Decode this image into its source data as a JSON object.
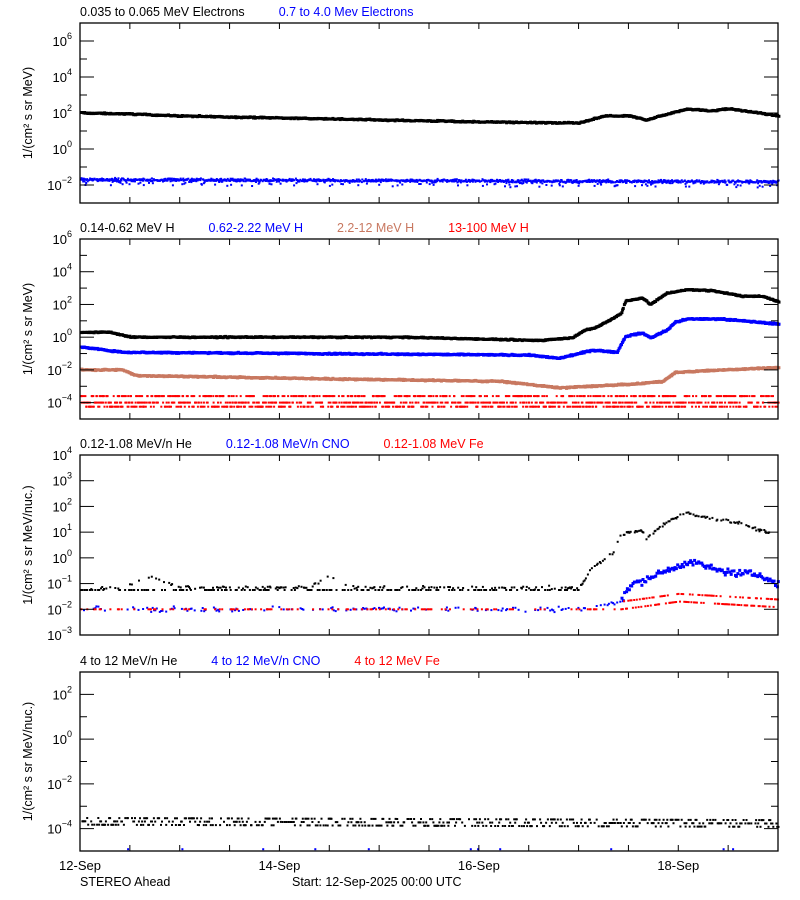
{
  "chart_data": {
    "type": "scatter",
    "x_range": [
      "2025-09-12T00:00",
      "2025-09-19T00:00"
    ],
    "x_tick_labels": [
      "12-Sep",
      "14-Sep",
      "16-Sep",
      "18-Sep"
    ],
    "x_ticks": [
      "2025-09-12T00:00",
      "2025-09-14T00:00",
      "2025-09-16T00:00",
      "2025-09-18T00:00"
    ],
    "x_minor_interval_hours": 12,
    "footer_left": "STEREO Ahead",
    "footer_center": "Start: 12-Sep-2025 00:00 UTC",
    "y_scale": "log",
    "grid": false,
    "panels": [
      {
        "ylabel": "1/(cm² s sr MeV)",
        "ylim": [
          0.001,
          10000000
        ],
        "yticks": [
          1000000,
          10000,
          100,
          1,
          0.01
        ],
        "series": [
          {
            "name": "0.035 to 0.065 MeV Electrons",
            "color": "#000000",
            "points": [
              [
                "2025-09-12T00:00",
                100
              ],
              [
                "2025-09-12T12:00",
                88
              ],
              [
                "2025-09-13T00:00",
                68
              ],
              [
                "2025-09-14T00:00",
                53
              ],
              [
                "2025-09-15T00:00",
                41
              ],
              [
                "2025-09-16T00:00",
                32
              ],
              [
                "2025-09-16T19:00",
                28
              ],
              [
                "2025-09-17T00:00",
                28
              ],
              [
                "2025-09-17T06:00",
                68
              ],
              [
                "2025-09-17T12:00",
                68
              ],
              [
                "2025-09-17T16:00",
                41
              ],
              [
                "2025-09-17T22:00",
                100
              ],
              [
                "2025-09-18T02:00",
                170
              ],
              [
                "2025-09-18T07:00",
                130
              ],
              [
                "2025-09-18T12:00",
                170
              ],
              [
                "2025-09-19T00:00",
                68
              ]
            ]
          },
          {
            "name": "0.7 to 4.0 Mev Electrons",
            "color": "#0000ff",
            "points": [
              [
                "2025-09-12T00:00",
                0.02
              ],
              [
                "2025-09-19T00:00",
                0.015
              ]
            ]
          }
        ]
      },
      {
        "ylabel": "1/(cm² s sr MeV)",
        "ylim": [
          1e-05,
          1000000
        ],
        "yticks": [
          1000000,
          10000,
          100,
          1,
          0.01,
          0.0001
        ],
        "series": [
          {
            "name": "0.14-0.62 MeV H",
            "color": "#000000",
            "points": [
              [
                "2025-09-12T00:00",
                2
              ],
              [
                "2025-09-12T07:00",
                2
              ],
              [
                "2025-09-12T12:00",
                1
              ],
              [
                "2025-09-15T05:00",
                1
              ],
              [
                "2025-09-16T14:00",
                0.63
              ],
              [
                "2025-09-16T22:00",
                0.9
              ],
              [
                "2025-09-17T01:00",
                2.5
              ],
              [
                "2025-09-17T04:00",
                4
              ],
              [
                "2025-09-17T09:00",
                20
              ],
              [
                "2025-09-17T10:00",
                30
              ],
              [
                "2025-09-17T11:00",
                160
              ],
              [
                "2025-09-17T15:00",
                250
              ],
              [
                "2025-09-17T17:00",
                100
              ],
              [
                "2025-09-17T21:00",
                500
              ],
              [
                "2025-09-18T02:00",
                800
              ],
              [
                "2025-09-18T08:00",
                700
              ],
              [
                "2025-09-18T15:00",
                320
              ],
              [
                "2025-09-18T20:00",
                320
              ],
              [
                "2025-09-19T00:00",
                140
              ]
            ]
          },
          {
            "name": "0.62-2.22 MeV H",
            "color": "#0000ff",
            "points": [
              [
                "2025-09-12T00:00",
                0.25
              ],
              [
                "2025-09-12T10:00",
                0.12
              ],
              [
                "2025-09-16T12:00",
                0.08
              ],
              [
                "2025-09-16T19:00",
                0.05
              ],
              [
                "2025-09-17T03:00",
                0.16
              ],
              [
                "2025-09-17T09:00",
                0.12
              ],
              [
                "2025-09-17T10:00",
                0.4
              ],
              [
                "2025-09-17T11:00",
                1.1
              ],
              [
                "2025-09-17T15:00",
                1.8
              ],
              [
                "2025-09-17T17:00",
                0.9
              ],
              [
                "2025-09-17T21:00",
                2.7
              ],
              [
                "2025-09-17T23:00",
                8.5
              ],
              [
                "2025-09-18T02:00",
                13
              ],
              [
                "2025-09-18T10:00",
                13
              ],
              [
                "2025-09-18T15:00",
                10
              ],
              [
                "2025-09-19T00:00",
                6.3
              ]
            ]
          },
          {
            "name": "2.2-12 MeV H",
            "color": "#c87860",
            "points": [
              [
                "2025-09-12T00:00",
                0.01
              ],
              [
                "2025-09-12T10:00",
                0.01
              ],
              [
                "2025-09-12T13:00",
                0.0045
              ],
              [
                "2025-09-14T05:00",
                0.003
              ],
              [
                "2025-09-16T05:00",
                0.002
              ],
              [
                "2025-09-16T19:00",
                0.0008
              ],
              [
                "2025-09-17T14:00",
                0.0014
              ],
              [
                "2025-09-17T20:00",
                0.002
              ],
              [
                "2025-09-17T23:00",
                0.007
              ],
              [
                "2025-09-18T10:00",
                0.01
              ],
              [
                "2025-09-19T00:00",
                0.014
              ]
            ]
          },
          {
            "name": "13-100 MeV H",
            "color": "#ff0000",
            "points": [
              [
                "2025-09-12T00:00",
                0.0001
              ],
              [
                "2025-09-19T00:00",
                0.0001
              ]
            ]
          }
        ]
      },
      {
        "ylabel": "1/(cm² s sr MeV/nuc.)",
        "ylim": [
          0.001,
          10000
        ],
        "yticks": [
          10000,
          1000,
          100,
          10,
          1,
          0.1,
          0.01,
          0.001
        ],
        "series": [
          {
            "name": "0.12-1.08 MeV/n He",
            "color": "#000000",
            "points": [
              [
                "2025-09-12T00:00",
                0.06
              ],
              [
                "2025-09-12T10:00",
                0.07
              ],
              [
                "2025-09-12T16:00",
                0.2
              ],
              [
                "2025-09-13T00:00",
                0.07
              ],
              [
                "2025-09-14T07:00",
                0.07
              ],
              [
                "2025-09-14T12:00",
                0.2
              ],
              [
                "2025-09-14T17:00",
                0.07
              ],
              [
                "2025-09-17T00:00",
                0.07
              ],
              [
                "2025-09-17T03:00",
                0.4
              ],
              [
                "2025-09-17T08:00",
                1.5
              ],
              [
                "2025-09-17T10:00",
                8
              ],
              [
                "2025-09-17T15:00",
                12
              ],
              [
                "2025-09-17T16:00",
                5
              ],
              [
                "2025-09-17T19:00",
                14
              ],
              [
                "2025-09-17T22:00",
                30
              ],
              [
                "2025-09-18T02:00",
                60
              ],
              [
                "2025-09-18T05:00",
                40
              ],
              [
                "2025-09-18T10:00",
                30
              ],
              [
                "2025-09-18T16:00",
                20
              ],
              [
                "2025-09-18T19:00",
                12
              ],
              [
                "2025-09-19T00:00",
                8
              ]
            ]
          },
          {
            "name": "0.12-1.08 MeV/n CNO",
            "color": "#0000ff",
            "points": [
              [
                "2025-09-12T00:00",
                0.01
              ],
              [
                "2025-09-17T00:00",
                0.01
              ],
              [
                "2025-09-17T10:00",
                0.02
              ],
              [
                "2025-09-17T12:00",
                0.08
              ],
              [
                "2025-09-18T02:00",
                0.7
              ],
              [
                "2025-09-18T10:00",
                0.3
              ],
              [
                "2025-09-18T20:00",
                0.2
              ],
              [
                "2025-09-19T00:00",
                0.08
              ]
            ]
          },
          {
            "name": "0.12-1.08 MeV Fe",
            "color": "#ff0000",
            "points": [
              [
                "2025-09-12T00:00",
                0.01
              ],
              [
                "2025-09-17T10:00",
                0.01
              ],
              [
                "2025-09-17T14:00",
                0.012
              ],
              [
                "2025-09-18T00:00",
                0.02
              ],
              [
                "2025-09-19T00:00",
                0.012
              ]
            ]
          }
        ]
      },
      {
        "ylabel": "1/(cm² s sr MeV/nuc.)",
        "ylim": [
          1e-05,
          1000
        ],
        "yticks": [
          100,
          1,
          0.01,
          0.0001
        ],
        "series": [
          {
            "name": "4 to 12 MeV/n He",
            "color": "#000000",
            "points": [
              [
                "2025-09-12T00:00",
                0.00015
              ],
              [
                "2025-09-19T00:00",
                0.00012
              ]
            ]
          },
          {
            "name": "4 to 12 MeV/n CNO",
            "color": "#0000ff",
            "points": [
              [
                "2025-09-12T00:00",
                1.2e-05
              ],
              [
                "2025-09-19T00:00",
                1.2e-05
              ]
            ]
          },
          {
            "name": "4 to 12 MeV Fe",
            "color": "#ff0000",
            "points": []
          }
        ]
      }
    ]
  }
}
